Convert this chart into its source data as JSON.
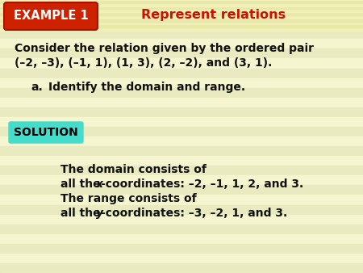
{
  "bg_color": "#fefee8",
  "stripe_color_light": "#f5f5d0",
  "stripe_color_dark": "#eaeac0",
  "header_bg": "#f0f0c0",
  "example_box_color": "#cc2200",
  "example_box_edge": "#aa1100",
  "example_box_text": "EXAMPLE 1",
  "example_box_text_color": "#ffffff",
  "title_text": "Represent relations",
  "title_color": "#cc1100",
  "solution_box_color": "#44ddcc",
  "solution_text": "SOLUTION",
  "body_text_1": "Consider the relation given by the ordered pair",
  "body_text_2": "(–2, –3), (–1, 1), (1, 3), (2, –2), and (3, 1).",
  "sub_a": "a.",
  "sub_b": "Identify the domain and range.",
  "domain_line1": "The domain consists of",
  "domain_line2_pre": "all the ",
  "domain_line2_x": "x",
  "domain_line2_suf": "-coordinates: –2, –1, 1, 2, and 3.",
  "range_line1": "The range consists of",
  "range_line2_pre": "all the ",
  "range_line2_y": "y",
  "range_line2_suf": "-coordinates: –3, –2, 1, and 3.",
  "font_body": 10.0,
  "font_header_title": 11.5,
  "font_example": 10.5,
  "font_solution": 10.0,
  "num_stripes": 28
}
